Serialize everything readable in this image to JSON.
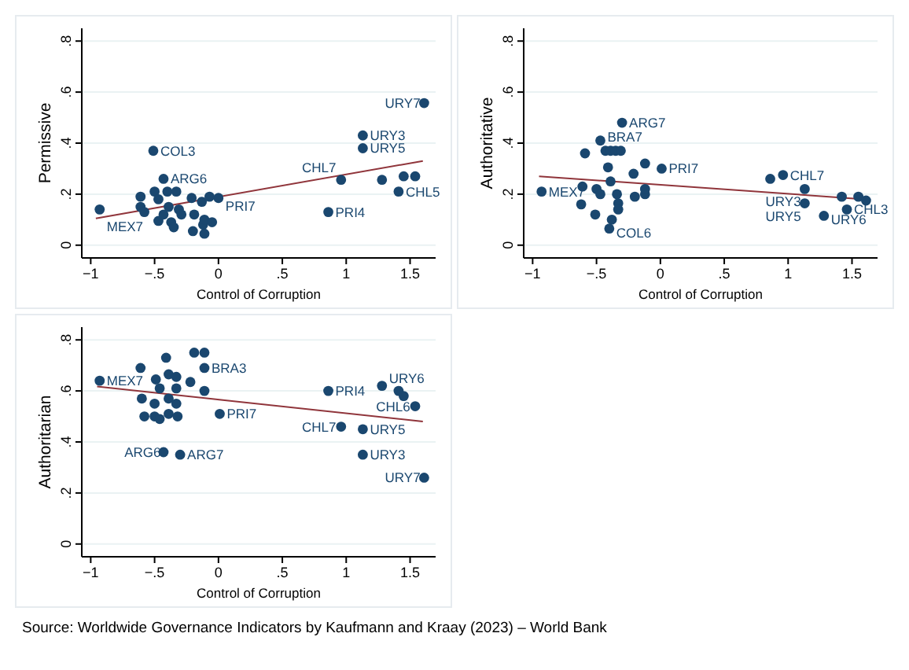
{
  "chart_data": [
    {
      "type": "scatter",
      "xlabel": "Control of Corruption",
      "ylabel": "Permissive",
      "xlim": [
        -1.07,
        1.7
      ],
      "ylim": [
        -0.05,
        0.85
      ],
      "xticks": [
        {
          "value": -1,
          "label": "−1"
        },
        {
          "value": -0.5,
          "label": "−.5"
        },
        {
          "value": 0,
          "label": "0"
        },
        {
          "value": 0.5,
          "label": ".5"
        },
        {
          "value": 1,
          "label": "1"
        },
        {
          "value": 1.5,
          "label": "1.5"
        }
      ],
      "yticks": [
        {
          "value": 0,
          "label": "0"
        },
        {
          "value": 0.2,
          "label": ".2"
        },
        {
          "value": 0.4,
          "label": ".4"
        },
        {
          "value": 0.6,
          "label": ".6"
        },
        {
          "value": 0.8,
          "label": ".8"
        }
      ],
      "grid": "y",
      "series": [
        {
          "type": "scatter",
          "marker": "circle",
          "color": "#1a476f",
          "x": [
            1.61,
            1.13,
            1.13,
            -0.51,
            -0.43,
            0.96,
            1.28,
            1.45,
            1.54,
            1.41,
            0.86,
            0,
            -0.93,
            -0.61,
            -0.61,
            -0.58,
            -0.5,
            -0.47,
            -0.47,
            -0.4,
            -0.39,
            -0.37,
            -0.35,
            -0.33,
            -0.31,
            -0.29,
            -0.2,
            -0.19,
            -0.12,
            -0.11,
            -0.11,
            -0.21,
            -0.13,
            -0.07,
            -0.43,
            -0.05
          ],
          "values": [
            0.557,
            0.43,
            0.38,
            0.37,
            0.26,
            0.256,
            0.256,
            0.27,
            0.27,
            0.21,
            0.13,
            0.185,
            0.14,
            0.19,
            0.15,
            0.13,
            0.21,
            0.18,
            0.095,
            0.21,
            0.15,
            0.09,
            0.07,
            0.21,
            0.14,
            0.12,
            0.055,
            0.12,
            0.08,
            0.045,
            0.1,
            0.185,
            0.17,
            0.19,
            0.12,
            0.09
          ]
        },
        {
          "type": "line",
          "color": "#90353b",
          "x": [
            -0.96,
            1.6
          ],
          "values": [
            0.105,
            0.33
          ]
        }
      ],
      "annotations": [
        {
          "text": "URY7",
          "x": 1.61,
          "y": 0.557
        },
        {
          "text": "URY3",
          "x": 1.13,
          "y": 0.43
        },
        {
          "text": "URY5",
          "x": 1.13,
          "y": 0.38
        },
        {
          "text": "COL3",
          "x": -0.51,
          "y": 0.37
        },
        {
          "text": "ARG6",
          "x": -0.43,
          "y": 0.26
        },
        {
          "text": "CHL7",
          "x": 0.96,
          "y": 0.256
        },
        {
          "text": "CHL5",
          "x": 1.41,
          "y": 0.21
        },
        {
          "text": "PRI4",
          "x": 0.86,
          "y": 0.13
        },
        {
          "text": "PRI7",
          "x": 0,
          "y": 0.185
        },
        {
          "text": "MEX7",
          "x": -0.93,
          "y": 0.14
        }
      ]
    },
    {
      "type": "scatter",
      "xlabel": "Control of Corruption",
      "ylabel": "Authoritative",
      "xlim": [
        -1.07,
        1.7
      ],
      "ylim": [
        -0.05,
        0.85
      ],
      "xticks": [
        {
          "value": -1,
          "label": "−1"
        },
        {
          "value": -0.5,
          "label": "−.5"
        },
        {
          "value": 0,
          "label": "0"
        },
        {
          "value": 0.5,
          "label": ".5"
        },
        {
          "value": 1,
          "label": "1"
        },
        {
          "value": 1.5,
          "label": "1.5"
        }
      ],
      "yticks": [
        {
          "value": 0,
          "label": "0"
        },
        {
          "value": 0.2,
          "label": ".2"
        },
        {
          "value": 0.4,
          "label": ".4"
        },
        {
          "value": 0.6,
          "label": ".6"
        },
        {
          "value": 0.8,
          "label": ".8"
        }
      ],
      "grid": "y",
      "series": [
        {
          "type": "scatter",
          "marker": "circle",
          "color": "#1a476f",
          "x": [
            -0.3,
            -0.47,
            -0.59,
            -0.43,
            -0.39,
            -0.35,
            -0.31,
            -0.41,
            -0.12,
            0.01,
            -0.21,
            -0.39,
            -0.93,
            -0.61,
            -0.5,
            -0.47,
            -0.34,
            -0.2,
            -0.12,
            -0.12,
            -0.62,
            -0.33,
            -0.51,
            -0.33,
            -0.38,
            -0.4,
            0.86,
            0.96,
            1.13,
            1.13,
            1.28,
            1.42,
            1.46,
            1.55,
            1.61
          ],
          "values": [
            0.48,
            0.41,
            0.36,
            0.37,
            0.37,
            0.37,
            0.37,
            0.305,
            0.32,
            0.3,
            0.28,
            0.25,
            0.21,
            0.23,
            0.22,
            0.2,
            0.2,
            0.19,
            0.2,
            0.22,
            0.16,
            0.164,
            0.12,
            0.14,
            0.1,
            0.065,
            0.26,
            0.275,
            0.22,
            0.164,
            0.115,
            0.19,
            0.14,
            0.19,
            0.175
          ]
        },
        {
          "type": "line",
          "color": "#90353b",
          "x": [
            -0.95,
            1.6
          ],
          "values": [
            0.27,
            0.18
          ]
        }
      ],
      "annotations": [
        {
          "text": "ARG7",
          "x": -0.3,
          "y": 0.48
        },
        {
          "text": "BRA7",
          "x": -0.47,
          "y": 0.41
        },
        {
          "text": "PRI7",
          "x": 0.01,
          "y": 0.3
        },
        {
          "text": "MEX7",
          "x": -0.93,
          "y": 0.21
        },
        {
          "text": "COL6",
          "x": -0.4,
          "y": 0.065
        },
        {
          "text": "CHL7",
          "x": 0.96,
          "y": 0.275
        },
        {
          "text": "URY3",
          "x": 1.13,
          "y": 0.22
        },
        {
          "text": "URY5",
          "x": 1.13,
          "y": 0.164
        },
        {
          "text": "URY6",
          "x": 1.28,
          "y": 0.115
        },
        {
          "text": "CHL3",
          "x": 1.46,
          "y": 0.14
        }
      ]
    },
    {
      "type": "scatter",
      "xlabel": "Control of Corruption",
      "ylabel": "Authoritarian",
      "xlim": [
        -1.07,
        1.7
      ],
      "ylim": [
        -0.05,
        0.85
      ],
      "xticks": [
        {
          "value": -1,
          "label": "−1"
        },
        {
          "value": -0.5,
          "label": "−.5"
        },
        {
          "value": 0,
          "label": "0"
        },
        {
          "value": 0.5,
          "label": ".5"
        },
        {
          "value": 1,
          "label": "1"
        },
        {
          "value": 1.5,
          "label": "1.5"
        }
      ],
      "yticks": [
        {
          "value": 0,
          "label": "0"
        },
        {
          "value": 0.2,
          "label": ".2"
        },
        {
          "value": 0.4,
          "label": ".4"
        },
        {
          "value": 0.6,
          "label": ".6"
        },
        {
          "value": 0.8,
          "label": ".8"
        }
      ],
      "grid": "y",
      "series": [
        {
          "type": "scatter",
          "marker": "circle",
          "color": "#1a476f",
          "x": [
            -0.93,
            -0.61,
            -0.41,
            -0.19,
            -0.11,
            -0.11,
            -0.49,
            -0.39,
            -0.33,
            -0.22,
            -0.33,
            -0.11,
            -0.46,
            -0.6,
            -0.5,
            -0.39,
            -0.33,
            -0.58,
            -0.5,
            -0.46,
            -0.39,
            -0.32,
            0.01,
            -0.43,
            -0.3,
            0.86,
            1.28,
            1.41,
            1.45,
            1.54,
            0.96,
            1.13,
            1.13,
            1.61
          ],
          "values": [
            0.64,
            0.69,
            0.73,
            0.75,
            0.75,
            0.69,
            0.645,
            0.665,
            0.655,
            0.635,
            0.61,
            0.6,
            0.61,
            0.57,
            0.55,
            0.57,
            0.55,
            0.5,
            0.5,
            0.49,
            0.51,
            0.5,
            0.51,
            0.36,
            0.35,
            0.6,
            0.62,
            0.6,
            0.58,
            0.54,
            0.46,
            0.45,
            0.35,
            0.26
          ]
        },
        {
          "type": "line",
          "color": "#90353b",
          "x": [
            -0.95,
            1.6
          ],
          "values": [
            0.617,
            0.48
          ]
        }
      ],
      "annotations": [
        {
          "text": "MEX7",
          "x": -0.93,
          "y": 0.64
        },
        {
          "text": "BRA3",
          "x": -0.11,
          "y": 0.69
        },
        {
          "text": "PRI7",
          "x": 0.01,
          "y": 0.51
        },
        {
          "text": "ARG6",
          "x": -0.43,
          "y": 0.36
        },
        {
          "text": "ARG7",
          "x": -0.3,
          "y": 0.35
        },
        {
          "text": "PRI4",
          "x": 0.86,
          "y": 0.6
        },
        {
          "text": "URY6",
          "x": 1.28,
          "y": 0.62
        },
        {
          "text": "CHL6",
          "x": 1.54,
          "y": 0.54
        },
        {
          "text": "CHL7",
          "x": 0.96,
          "y": 0.46
        },
        {
          "text": "URY5",
          "x": 1.13,
          "y": 0.45
        },
        {
          "text": "URY3",
          "x": 1.13,
          "y": 0.35
        },
        {
          "text": "URY7",
          "x": 1.61,
          "y": 0.26
        },
        "Source: Worldwide Governance Indicators by Kaufmann and Kraay (2023) – World Bank"
      ]
    }
  ]
}
